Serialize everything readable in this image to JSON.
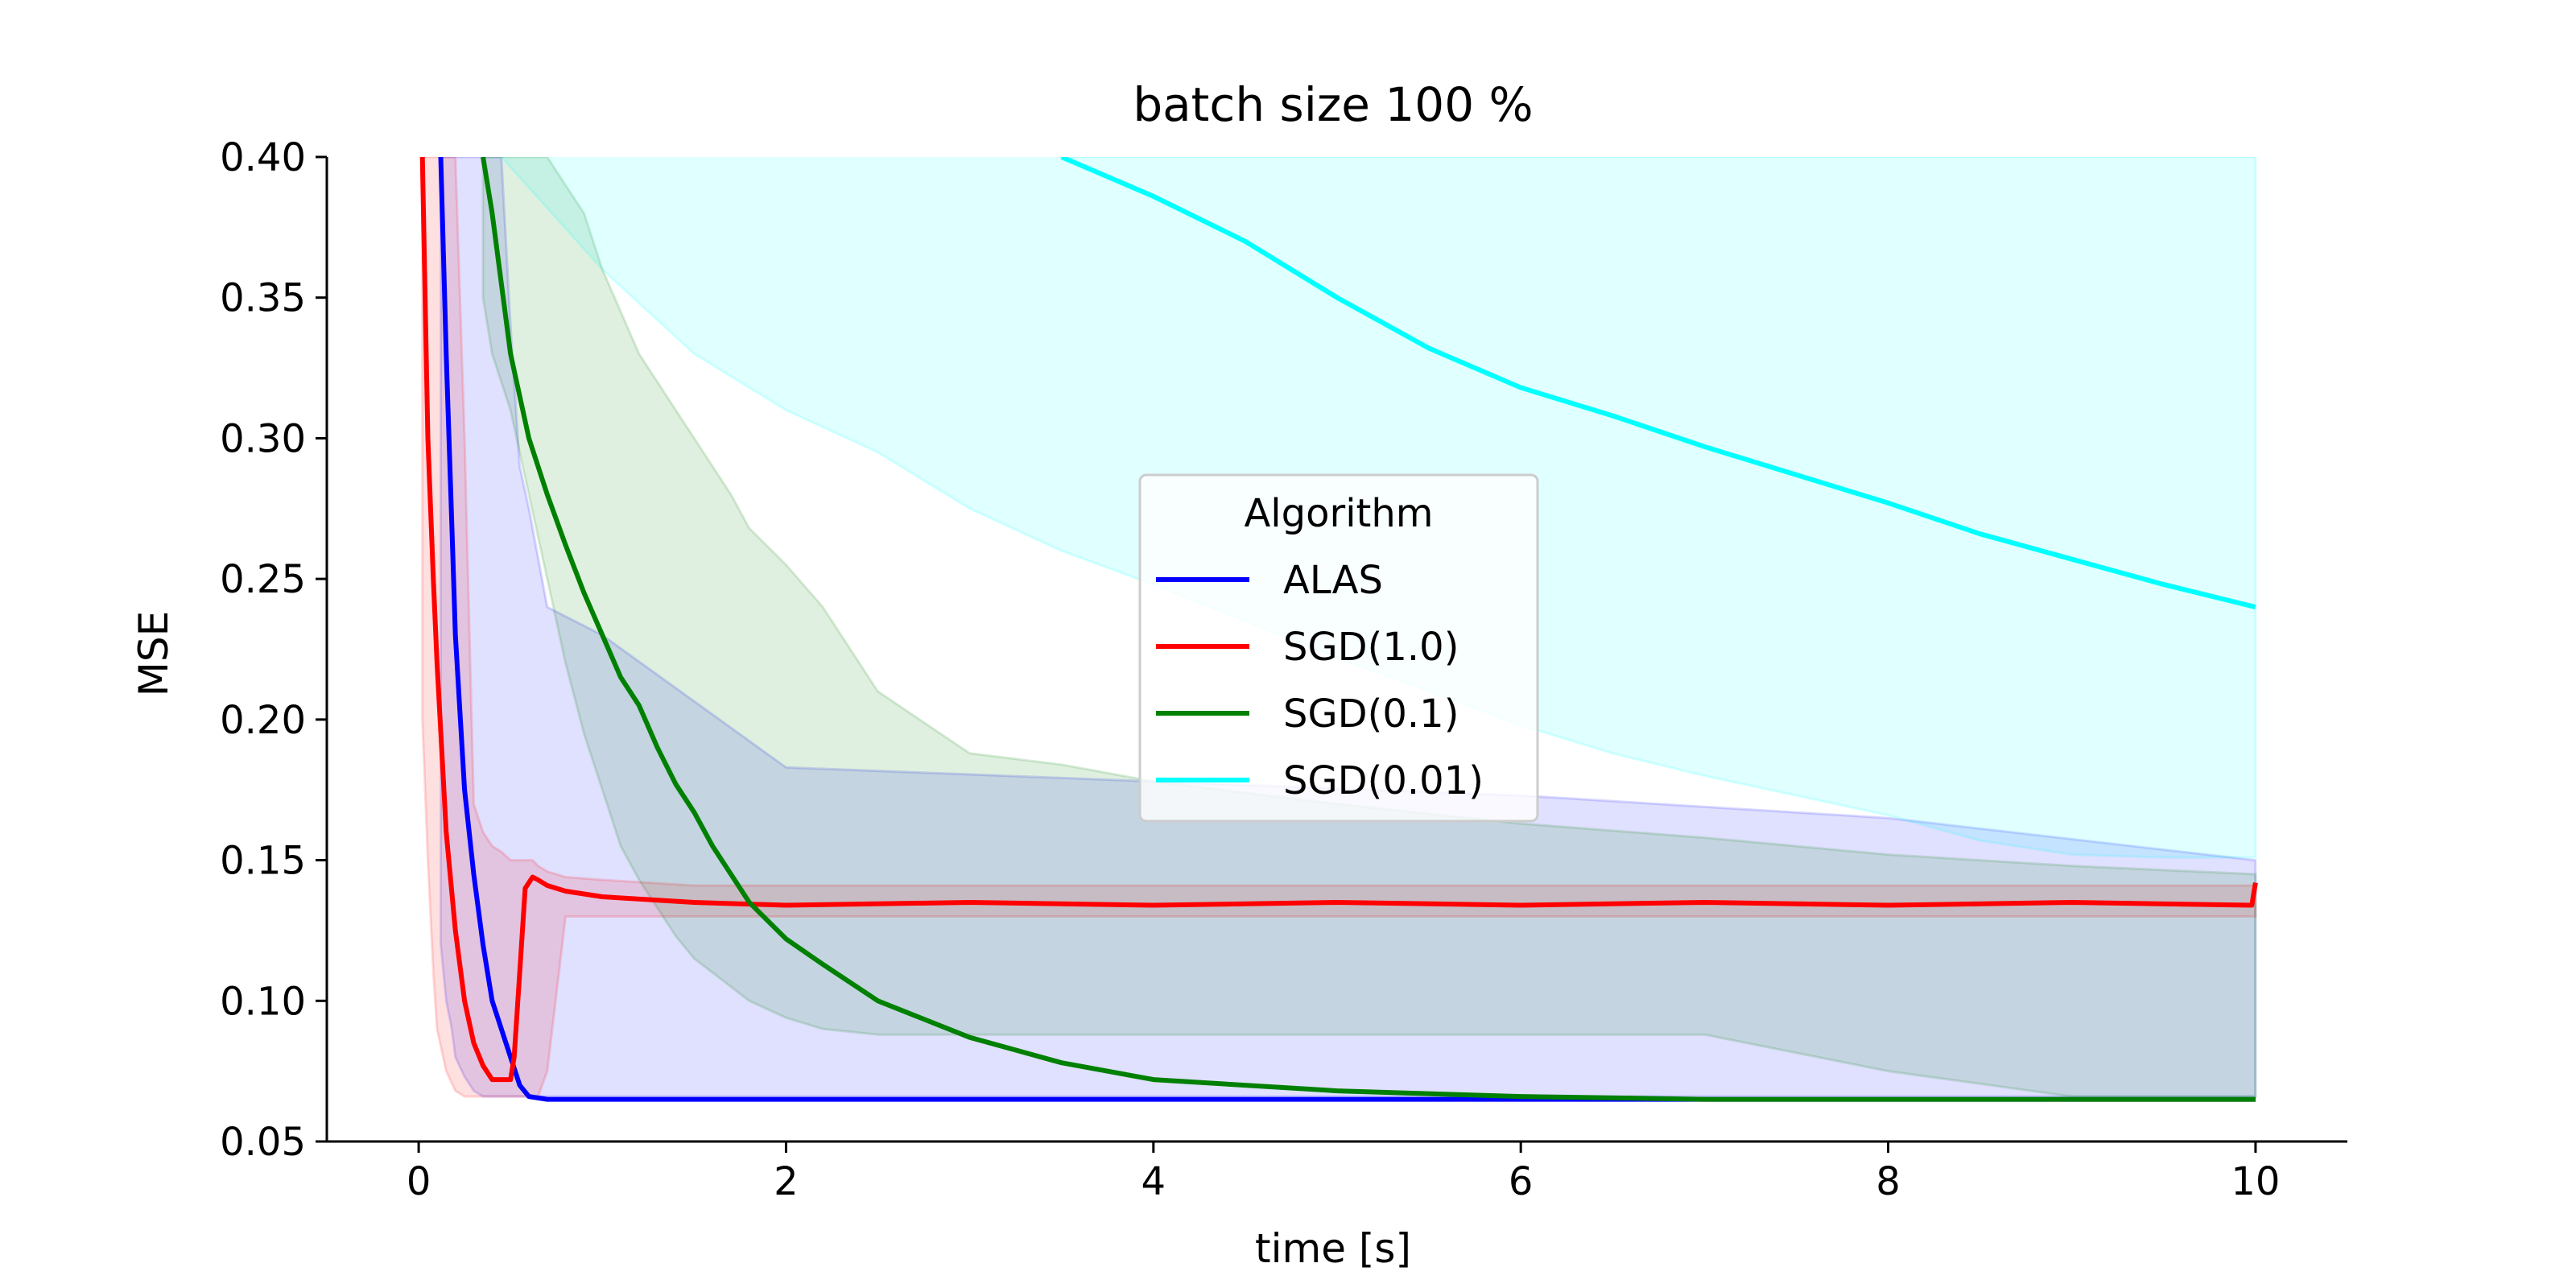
{
  "chart_data": {
    "type": "line",
    "title": "batch size 100 %",
    "xlabel": "time [s]",
    "ylabel": "MSE",
    "xlim": [
      -0.5,
      10.5
    ],
    "ylim": [
      0.05,
      0.4
    ],
    "xticks": [
      0,
      2,
      4,
      6,
      8,
      10
    ],
    "yticks": [
      0.05,
      0.1,
      0.15,
      0.2,
      0.25,
      0.3,
      0.35,
      0.4
    ],
    "ytick_labels": [
      "0.05",
      "0.10",
      "0.15",
      "0.20",
      "0.25",
      "0.30",
      "0.35",
      "0.40"
    ],
    "grid": false,
    "legend": {
      "title": "Algorithm",
      "placement": "center"
    },
    "series": [
      {
        "name": "ALAS",
        "color": "#0000ff",
        "x": [
          0.12,
          0.15,
          0.18,
          0.2,
          0.25,
          0.3,
          0.35,
          0.4,
          0.45,
          0.5,
          0.55,
          0.6,
          0.7,
          1,
          2,
          4,
          6,
          8,
          10
        ],
        "y": [
          0.4,
          0.33,
          0.27,
          0.23,
          0.175,
          0.145,
          0.12,
          0.1,
          0.09,
          0.08,
          0.07,
          0.066,
          0.065,
          0.065,
          0.065,
          0.065,
          0.065,
          0.065,
          0.065
        ],
        "band_upper": [
          0.4,
          0.4,
          0.4,
          0.4,
          0.4,
          0.4,
          0.4,
          0.4,
          0.4,
          0.34,
          0.29,
          0.275,
          0.24,
          0.23,
          0.183,
          0.178,
          0.173,
          0.165,
          0.15
        ],
        "band_lower": [
          0.12,
          0.1,
          0.09,
          0.08,
          0.073,
          0.068,
          0.066,
          0.066,
          0.066,
          0.066,
          0.066,
          0.066,
          0.066,
          0.066,
          0.066,
          0.066,
          0.066,
          0.066,
          0.066
        ]
      },
      {
        "name": "SGD(1.0)",
        "color": "#ff0000",
        "x": [
          0.02,
          0.05,
          0.08,
          0.1,
          0.15,
          0.2,
          0.25,
          0.3,
          0.35,
          0.4,
          0.45,
          0.5,
          0.52,
          0.55,
          0.58,
          0.62,
          0.65,
          0.7,
          0.8,
          1,
          1.5,
          2,
          3,
          4,
          5,
          6,
          7,
          8,
          9,
          9.98,
          10
        ],
        "y": [
          0.4,
          0.3,
          0.25,
          0.22,
          0.16,
          0.125,
          0.1,
          0.085,
          0.077,
          0.072,
          0.072,
          0.072,
          0.08,
          0.11,
          0.14,
          0.144,
          0.143,
          0.141,
          0.139,
          0.137,
          0.135,
          0.134,
          0.135,
          0.134,
          0.135,
          0.134,
          0.135,
          0.134,
          0.135,
          0.134,
          0.142
        ],
        "band_upper": [
          0.4,
          0.4,
          0.4,
          0.4,
          0.4,
          0.4,
          0.3,
          0.17,
          0.16,
          0.155,
          0.153,
          0.15,
          0.15,
          0.15,
          0.15,
          0.15,
          0.148,
          0.146,
          0.144,
          0.143,
          0.141,
          0.141,
          0.141,
          0.141,
          0.141,
          0.141,
          0.141,
          0.141,
          0.141,
          0.141,
          0.141
        ],
        "band_lower": [
          0.2,
          0.15,
          0.11,
          0.09,
          0.075,
          0.068,
          0.066,
          0.066,
          0.066,
          0.066,
          0.066,
          0.066,
          0.066,
          0.066,
          0.066,
          0.066,
          0.066,
          0.075,
          0.13,
          0.13,
          0.13,
          0.13,
          0.13,
          0.13,
          0.13,
          0.13,
          0.13,
          0.13,
          0.13,
          0.13,
          0.13
        ]
      },
      {
        "name": "SGD(0.1)",
        "color": "#008000",
        "x": [
          0.35,
          0.4,
          0.5,
          0.6,
          0.7,
          0.8,
          0.9,
          1,
          1.1,
          1.2,
          1.3,
          1.4,
          1.5,
          1.6,
          1.7,
          1.8,
          2,
          2.2,
          2.5,
          3,
          3.5,
          4,
          5,
          6,
          7,
          8,
          9,
          10
        ],
        "y": [
          0.4,
          0.38,
          0.33,
          0.3,
          0.28,
          0.262,
          0.245,
          0.23,
          0.215,
          0.205,
          0.19,
          0.177,
          0.167,
          0.155,
          0.145,
          0.135,
          0.122,
          0.113,
          0.1,
          0.087,
          0.078,
          0.072,
          0.068,
          0.066,
          0.065,
          0.065,
          0.065,
          0.065
        ],
        "band_upper": [
          0.4,
          0.4,
          0.4,
          0.4,
          0.4,
          0.39,
          0.38,
          0.36,
          0.345,
          0.33,
          0.32,
          0.31,
          0.3,
          0.29,
          0.28,
          0.268,
          0.255,
          0.24,
          0.21,
          0.188,
          0.184,
          0.178,
          0.17,
          0.163,
          0.158,
          0.152,
          0.148,
          0.145
        ],
        "band_lower": [
          0.35,
          0.33,
          0.31,
          0.28,
          0.25,
          0.22,
          0.195,
          0.175,
          0.155,
          0.143,
          0.133,
          0.123,
          0.115,
          0.11,
          0.105,
          0.1,
          0.094,
          0.09,
          0.088,
          0.088,
          0.088,
          0.088,
          0.088,
          0.088,
          0.088,
          0.075,
          0.066,
          0.066
        ]
      },
      {
        "name": "SGD(0.01)",
        "color": "#00ffff",
        "x": [
          3.5,
          4,
          4.5,
          5,
          5.5,
          6,
          6.5,
          7,
          7.5,
          8,
          8.5,
          9,
          9.5,
          10
        ],
        "y": [
          0.4,
          0.386,
          0.37,
          0.35,
          0.332,
          0.318,
          0.308,
          0.297,
          0.287,
          0.277,
          0.266,
          0.257,
          0.248,
          0.24
        ],
        "band_upper": [
          0.4,
          0.4,
          0.4,
          0.4,
          0.4,
          0.4,
          0.4,
          0.4,
          0.4,
          0.4,
          0.4,
          0.4,
          0.4,
          0.4
        ],
        "band_lower": [
          0.26,
          0.248,
          0.235,
          0.222,
          0.21,
          0.198,
          0.188,
          0.18,
          0.173,
          0.166,
          0.157,
          0.152,
          0.151,
          0.151
        ],
        "band_x_extra": [
          0.45,
          1.0,
          1.5,
          2.0,
          2.5,
          3.0
        ],
        "band_lower_extra": [
          0.4,
          0.36,
          0.33,
          0.31,
          0.295,
          0.275
        ]
      }
    ]
  }
}
